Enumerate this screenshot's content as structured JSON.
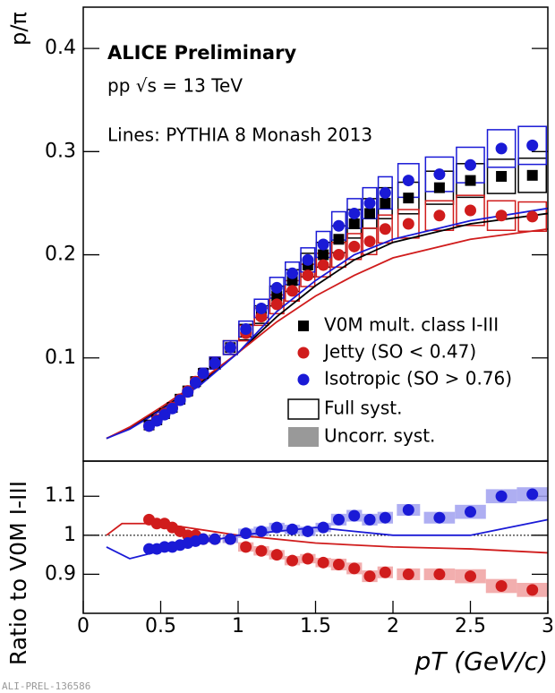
{
  "header": {
    "experiment": "ALICE Preliminary",
    "system": "pp √s = 13 TeV",
    "model_note": "Lines: PYTHIA 8 Monash 2013",
    "watermark": "ALI-PREL-136586",
    "legend_full_syst": "Full syst.",
    "legend_uncorr_syst": "Uncorr. syst."
  },
  "chart_data": [
    {
      "type": "scatter",
      "y_label": "p/π",
      "xlim": [
        0,
        3
      ],
      "ylim": [
        0,
        0.44
      ],
      "yticks": [
        0.1,
        0.2,
        0.3,
        0.4
      ],
      "x": [
        0.425,
        0.475,
        0.525,
        0.575,
        0.625,
        0.675,
        0.725,
        0.775,
        0.85,
        0.95,
        1.05,
        1.15,
        1.25,
        1.35,
        1.45,
        1.55,
        1.65,
        1.75,
        1.85,
        1.95,
        2.1,
        2.3,
        2.5,
        2.7,
        2.9
      ],
      "series": [
        {
          "name": "V0M mult. class I-III",
          "color": "#000000",
          "marker": "square",
          "values": [
            0.035,
            0.04,
            0.046,
            0.052,
            0.06,
            0.068,
            0.077,
            0.085,
            0.095,
            0.11,
            0.125,
            0.142,
            0.16,
            0.175,
            0.19,
            0.2,
            0.215,
            0.23,
            0.24,
            0.25,
            0.255,
            0.265,
            0.272,
            0.276,
            0.277
          ],
          "syst": [
            0.002,
            0.0024,
            0.0028,
            0.003,
            0.0036,
            0.004,
            0.0046,
            0.005,
            0.0057,
            0.0066,
            0.0075,
            0.0085,
            0.0096,
            0.0105,
            0.0114,
            0.012,
            0.013,
            0.0138,
            0.0144,
            0.015,
            0.0153,
            0.016,
            0.0163,
            0.0166,
            0.0166
          ]
        },
        {
          "name": "Jetty (SO < 0.47)",
          "color": "#d01c1c",
          "marker": "circle",
          "values": [
            0.034,
            0.04,
            0.046,
            0.052,
            0.06,
            0.068,
            0.077,
            0.085,
            0.095,
            0.11,
            0.124,
            0.14,
            0.152,
            0.165,
            0.18,
            0.19,
            0.2,
            0.208,
            0.213,
            0.225,
            0.23,
            0.238,
            0.243,
            0.238,
            0.237
          ],
          "syst": [
            0.002,
            0.0024,
            0.0028,
            0.003,
            0.0036,
            0.004,
            0.0046,
            0.005,
            0.0057,
            0.0066,
            0.0074,
            0.0084,
            0.0091,
            0.0099,
            0.0108,
            0.0114,
            0.012,
            0.0125,
            0.0128,
            0.0135,
            0.0138,
            0.0143,
            0.0146,
            0.0143,
            0.0142
          ]
        },
        {
          "name": "Isotropic (SO > 0.76)",
          "color": "#1a1ad6",
          "marker": "circle",
          "values": [
            0.034,
            0.039,
            0.045,
            0.051,
            0.059,
            0.067,
            0.076,
            0.085,
            0.095,
            0.11,
            0.128,
            0.148,
            0.168,
            0.182,
            0.195,
            0.21,
            0.228,
            0.24,
            0.25,
            0.26,
            0.272,
            0.278,
            0.287,
            0.303,
            0.306
          ],
          "syst": [
            0.002,
            0.0023,
            0.0027,
            0.003,
            0.0035,
            0.004,
            0.0046,
            0.005,
            0.0057,
            0.0066,
            0.0077,
            0.0089,
            0.0101,
            0.0109,
            0.0117,
            0.0126,
            0.0137,
            0.0144,
            0.015,
            0.0156,
            0.0163,
            0.0167,
            0.0172,
            0.0182,
            0.0184
          ]
        }
      ],
      "models": [
        {
          "color": "#000000",
          "x": [
            0.15,
            0.3,
            0.5,
            0.75,
            1.0,
            1.25,
            1.5,
            1.75,
            2.0,
            2.5,
            3.0
          ],
          "values": [
            0.022,
            0.032,
            0.05,
            0.075,
            0.105,
            0.14,
            0.17,
            0.195,
            0.212,
            0.23,
            0.24
          ]
        },
        {
          "color": "#d01c1c",
          "x": [
            0.15,
            0.3,
            0.5,
            0.75,
            1.0,
            1.25,
            1.5,
            1.75,
            2.0,
            2.5,
            3.0
          ],
          "values": [
            0.022,
            0.033,
            0.052,
            0.077,
            0.105,
            0.135,
            0.16,
            0.18,
            0.197,
            0.215,
            0.225
          ]
        },
        {
          "color": "#1a1ad6",
          "x": [
            0.15,
            0.3,
            0.5,
            0.75,
            1.0,
            1.25,
            1.5,
            1.75,
            2.0,
            2.5,
            3.0
          ],
          "values": [
            0.022,
            0.031,
            0.049,
            0.073,
            0.105,
            0.145,
            0.175,
            0.2,
            0.215,
            0.233,
            0.245
          ]
        }
      ]
    },
    {
      "type": "scatter",
      "y_label": "Ratio to V0M I-III",
      "x_label": "pT (GeV/c)",
      "xlim": [
        0,
        3
      ],
      "ylim": [
        0.8,
        1.19
      ],
      "yticks": [
        0.9,
        1,
        1.1
      ],
      "xticks": [
        0,
        0.5,
        1,
        1.5,
        2,
        2.5,
        3
      ],
      "reference": 1,
      "x": [
        0.425,
        0.475,
        0.525,
        0.575,
        0.625,
        0.675,
        0.725,
        0.775,
        0.85,
        0.95,
        1.05,
        1.15,
        1.25,
        1.35,
        1.45,
        1.55,
        1.65,
        1.75,
        1.85,
        1.95,
        2.1,
        2.3,
        2.5,
        2.7,
        2.9
      ],
      "series": [
        {
          "color": "#d01c1c",
          "box_color": "#f0a0a0",
          "values": [
            1.04,
            1.03,
            1.03,
            1.02,
            1.01,
            1.0,
            1.0,
            0.99,
            0.99,
            0.99,
            0.97,
            0.96,
            0.95,
            0.935,
            0.94,
            0.93,
            0.925,
            0.915,
            0.895,
            0.905,
            0.9,
            0.9,
            0.895,
            0.87,
            0.86
          ],
          "syst": [
            0.01,
            0.01,
            0.01,
            0.01,
            0.01,
            0.01,
            0.01,
            0.01,
            0.01,
            0.01,
            0.012,
            0.012,
            0.012,
            0.012,
            0.012,
            0.012,
            0.015,
            0.015,
            0.015,
            0.015,
            0.015,
            0.015,
            0.018,
            0.018,
            0.018
          ]
        },
        {
          "color": "#1a1ad6",
          "box_color": "#a0a0f0",
          "values": [
            0.965,
            0.965,
            0.97,
            0.97,
            0.975,
            0.98,
            0.985,
            0.99,
            0.99,
            0.99,
            1.005,
            1.01,
            1.02,
            1.015,
            1.01,
            1.02,
            1.04,
            1.05,
            1.04,
            1.045,
            1.065,
            1.045,
            1.06,
            1.1,
            1.105
          ],
          "syst": [
            0.01,
            0.01,
            0.01,
            0.01,
            0.01,
            0.01,
            0.01,
            0.01,
            0.01,
            0.01,
            0.012,
            0.012,
            0.012,
            0.012,
            0.012,
            0.012,
            0.015,
            0.015,
            0.015,
            0.015,
            0.015,
            0.015,
            0.018,
            0.018,
            0.018
          ]
        }
      ],
      "models": [
        {
          "color": "#d01c1c",
          "x": [
            0.15,
            0.25,
            0.5,
            1.0,
            1.5,
            2.0,
            2.5,
            3.0
          ],
          "values": [
            1.0,
            1.03,
            1.03,
            1.0,
            0.98,
            0.97,
            0.965,
            0.955
          ]
        },
        {
          "color": "#1a1ad6",
          "x": [
            0.15,
            0.3,
            0.5,
            1.0,
            1.5,
            2.0,
            2.5,
            3.0
          ],
          "values": [
            0.97,
            0.94,
            0.96,
            1.0,
            1.02,
            1.0,
            1.0,
            1.04
          ]
        }
      ]
    }
  ]
}
